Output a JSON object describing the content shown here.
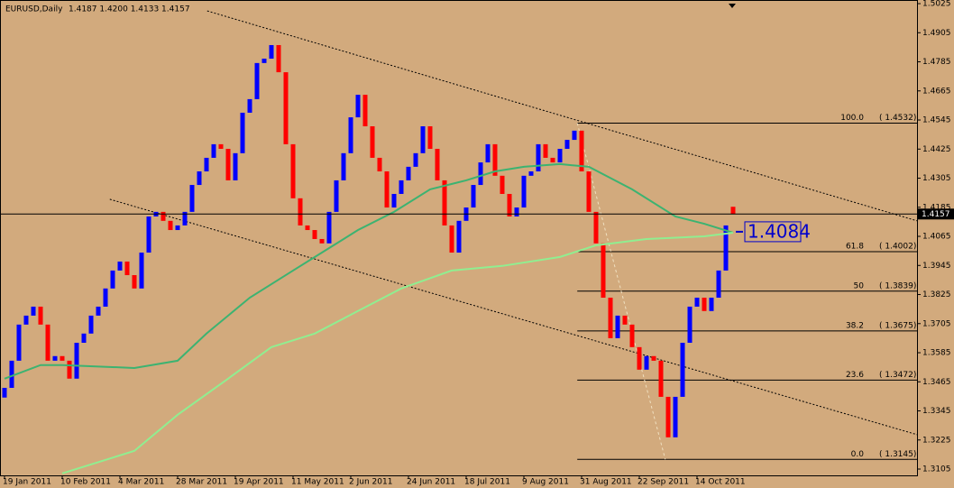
{
  "chart_data": {
    "type": "candlestick",
    "title": "EURUSD,Daily",
    "quote": "1.4187 1.4200 1.4133 1.4157",
    "up_color": "#0000ff",
    "down_color": "#ff0000",
    "open": [
      1.34,
      1.344,
      1.3552,
      1.3701,
      1.3738,
      1.3775,
      1.3701,
      1.3552,
      1.3571,
      1.3552,
      1.3478,
      1.3626,
      1.3664,
      1.3738,
      1.3775,
      1.385,
      1.3924,
      1.3961,
      1.3905,
      1.385,
      1.3998,
      1.4147,
      1.4166,
      1.4129,
      1.4091,
      1.411,
      1.4166,
      1.4277,
      1.4333,
      1.4389,
      1.4445,
      1.4426,
      1.4296,
      1.4408,
      1.4575,
      1.4631,
      1.478,
      1.4798,
      1.4854,
      1.4742,
      1.4445,
      1.4222,
      1.411,
      1.4091,
      1.4054,
      1.4036,
      1.4166,
      1.4296,
      1.4408,
      1.4556,
      1.4649,
      1.4519,
      1.4389,
      1.4333,
      1.4184,
      1.424,
      1.4296,
      1.4352,
      1.4408,
      1.4519,
      1.4426,
      1.4296,
      1.411,
      1.3998,
      1.4129,
      1.4184,
      1.4277,
      1.437,
      1.4445,
      1.4315,
      1.424,
      1.4147,
      1.4184,
      1.4315,
      1.4333,
      1.4445,
      1.4389,
      1.437,
      1.4426,
      1.4463,
      1.4501,
      1.4333,
      1.4166,
      1.4036,
      1.3812,
      1.3645,
      1.3738,
      1.3701,
      1.3608,
      1.3515,
      1.3571,
      1.3552,
      1.3403,
      1.3236,
      1.3403,
      1.3626,
      1.3775,
      1.3812,
      1.3757,
      1.3812,
      1.3924,
      1.4187
    ],
    "close": [
      1.344,
      1.3552,
      1.3701,
      1.3738,
      1.3775,
      1.3701,
      1.3552,
      1.3571,
      1.3552,
      1.3478,
      1.3626,
      1.3664,
      1.3738,
      1.3775,
      1.385,
      1.3924,
      1.3961,
      1.3905,
      1.385,
      1.3998,
      1.4147,
      1.4166,
      1.4129,
      1.4091,
      1.411,
      1.4166,
      1.4277,
      1.4333,
      1.4389,
      1.4445,
      1.4426,
      1.4296,
      1.4408,
      1.4575,
      1.4631,
      1.478,
      1.4798,
      1.4854,
      1.4742,
      1.4445,
      1.4222,
      1.411,
      1.4091,
      1.4054,
      1.4036,
      1.4166,
      1.4296,
      1.4408,
      1.4556,
      1.4649,
      1.4519,
      1.4389,
      1.4333,
      1.4184,
      1.424,
      1.4296,
      1.4352,
      1.4408,
      1.4519,
      1.4426,
      1.4296,
      1.411,
      1.3998,
      1.4129,
      1.4184,
      1.4277,
      1.437,
      1.4445,
      1.4315,
      1.424,
      1.4147,
      1.4184,
      1.4315,
      1.4333,
      1.4445,
      1.4389,
      1.437,
      1.4426,
      1.4463,
      1.4501,
      1.4333,
      1.4166,
      1.4036,
      1.3812,
      1.3645,
      1.3738,
      1.3701,
      1.3608,
      1.3515,
      1.3571,
      1.3552,
      1.3403,
      1.3236,
      1.3403,
      1.3626,
      1.3775,
      1.3812,
      1.3757,
      1.3812,
      1.3924,
      1.411,
      1.4157
    ],
    "moving_averages": [
      {
        "color": "#3cb371",
        "x": [
          0,
          5,
          8,
          18,
          24,
          28,
          34,
          40,
          44,
          49,
          54,
          59,
          64,
          68,
          72,
          77,
          81,
          87,
          93,
          97,
          101
        ],
        "values": [
          1.3478,
          1.3534,
          1.3534,
          1.3522,
          1.3552,
          1.3664,
          1.3812,
          1.3924,
          1.3998,
          1.4091,
          1.4166,
          1.4259,
          1.4296,
          1.4333,
          1.4352,
          1.4363,
          1.4352,
          1.4259,
          1.4147,
          1.4117,
          1.408
        ]
      },
      {
        "color": "#90ee90",
        "x": [
          8,
          18,
          24,
          31,
          37,
          43,
          49,
          55,
          62,
          69,
          77,
          82,
          89,
          97,
          101
        ],
        "values": [
          1.3087,
          1.318,
          1.3329,
          1.3478,
          1.3608,
          1.3664,
          1.3757,
          1.385,
          1.3924,
          1.3943,
          1.398,
          1.4028,
          1.4054,
          1.4065,
          1.408
        ]
      }
    ],
    "ma_label": 1.4084,
    "trendlines": [
      {
        "x": [
          28.1,
          126.5
        ],
        "values": [
          1.4995,
          1.4129
        ]
      },
      {
        "x": [
          14.6,
          126.5
        ],
        "values": [
          1.4218,
          1.3247
        ]
      }
    ],
    "fib_line": {
      "x": [
        79.4,
        91.6
      ],
      "values": [
        1.4532,
        1.3145
      ]
    },
    "fib_start": 79.4,
    "fib_levels": [
      {
        "level": {
          "value": 100,
          "label": "100.0"
        },
        "price": {
          "value": 1.4532,
          "label": "( 1.4532)"
        }
      },
      {
        "level": 61.8,
        "price": {
          "value": 1.4002,
          "label": "( 1.4002)"
        }
      },
      {
        "level": 50,
        "price": {
          "value": 1.3839,
          "label": "( 1.3839)"
        }
      },
      {
        "level": 38.2,
        "price": {
          "value": 1.3675,
          "label": "( 1.3675)"
        }
      },
      {
        "level": 23.6,
        "price": {
          "value": 1.3472,
          "label": "( 1.3472)"
        }
      },
      {
        "level": {
          "value": 0,
          "label": "0.0"
        },
        "price": {
          "value": 1.3145,
          "label": "( 1.3145)"
        }
      }
    ],
    "xlim": [
      -0.625,
      126.5
    ],
    "xticks": [
      {
        "value": 0,
        "label": "19 Jan 2011"
      },
      {
        "value": 8,
        "label": "10 Feb 2011"
      },
      {
        "value": 16,
        "label": "4 Mar 2011"
      },
      {
        "value": 24,
        "label": "28 Mar 2011"
      },
      {
        "value": 32,
        "label": "19 Apr 2011"
      },
      {
        "value": 40,
        "label": "11 May 2011"
      },
      {
        "value": 48,
        "label": "2 Jun 2011"
      },
      {
        "value": 56,
        "label": "24 Jun 2011"
      },
      {
        "value": 64,
        "label": "18 Jul 2011"
      },
      {
        "value": 72,
        "label": "9 Aug 2011"
      },
      {
        "value": 80,
        "label": "31 Aug 2011"
      },
      {
        "value": 88,
        "label": "22 Sep 2011"
      },
      {
        "value": 96,
        "label": "14 Oct 2011"
      }
    ],
    "ylim": [
      1.3079,
      1.504
    ],
    "yticks": [
      1.5025,
      1.4905,
      1.4785,
      1.4665,
      1.4545,
      1.4425,
      1.4305,
      1.4185,
      1.4065,
      1.3945,
      1.3825,
      1.3705,
      1.3585,
      1.3465,
      1.3345,
      1.3225,
      1.3105
    ]
  }
}
